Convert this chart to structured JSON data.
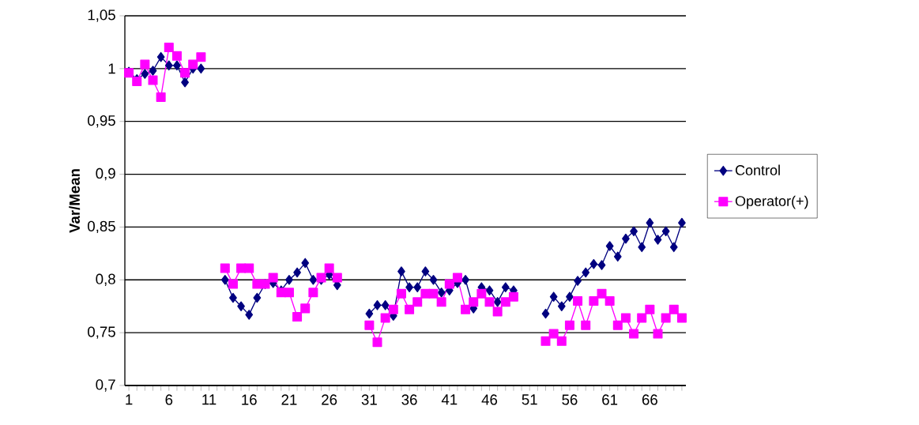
{
  "chart_data": {
    "type": "line",
    "ylabel": "Var/Mean",
    "categories": [
      "1",
      null,
      null,
      null,
      null,
      "6",
      null,
      null,
      null,
      null,
      "11",
      null,
      null,
      null,
      null,
      "16",
      null,
      null,
      null,
      null,
      "21",
      null,
      null,
      null,
      null,
      "26",
      null,
      null,
      null,
      null,
      "31",
      null,
      null,
      null,
      null,
      "36",
      null,
      null,
      null,
      null,
      "41",
      null,
      null,
      null,
      null,
      "46",
      null,
      null,
      null,
      null,
      "51",
      null,
      null,
      null,
      null,
      "56",
      null,
      null,
      null,
      null,
      "61",
      null,
      null,
      null,
      null,
      "66",
      null,
      null,
      null,
      null
    ],
    "series": [
      {
        "name": "Control",
        "color": "#000080",
        "marker": "diamond",
        "values": [
          0.997,
          0.99,
          0.995,
          0.998,
          1.011,
          1.003,
          1.003,
          0.987,
          1.0,
          1.0,
          null,
          null,
          0.8,
          0.783,
          0.775,
          0.767,
          0.783,
          0.796,
          0.797,
          0.79,
          0.8,
          0.807,
          0.816,
          0.8,
          0.8,
          0.805,
          0.795,
          null,
          null,
          null,
          0.768,
          0.776,
          0.776,
          0.766,
          0.808,
          0.793,
          0.793,
          0.808,
          0.8,
          0.788,
          0.79,
          0.797,
          0.8,
          0.773,
          0.793,
          0.79,
          0.779,
          0.793,
          0.79,
          null,
          null,
          null,
          0.768,
          0.784,
          0.775,
          0.784,
          0.799,
          0.807,
          0.815,
          0.814,
          0.832,
          0.822,
          0.839,
          0.846,
          0.831,
          0.854,
          0.838,
          0.846,
          0.831,
          0.854
        ]
      },
      {
        "name": "Operator(+)",
        "color": "#ff00ff",
        "marker": "square",
        "values": [
          0.996,
          0.988,
          1.004,
          0.989,
          0.973,
          1.02,
          1.012,
          0.996,
          1.004,
          1.011,
          null,
          null,
          0.811,
          0.796,
          0.811,
          0.811,
          0.796,
          0.796,
          0.802,
          0.788,
          0.788,
          0.765,
          0.773,
          0.788,
          0.802,
          0.811,
          0.802,
          null,
          null,
          null,
          0.757,
          0.741,
          0.764,
          0.772,
          0.787,
          0.772,
          0.779,
          0.787,
          0.787,
          0.779,
          0.796,
          0.802,
          0.772,
          0.779,
          0.787,
          0.779,
          0.77,
          0.779,
          0.784,
          null,
          null,
          null,
          0.742,
          0.749,
          0.742,
          0.757,
          0.78,
          0.757,
          0.78,
          0.787,
          0.78,
          0.757,
          0.764,
          0.749,
          0.764,
          0.772,
          0.749,
          0.764,
          0.772,
          0.764
        ]
      }
    ],
    "ylim": [
      0.7,
      1.05
    ],
    "yticks": [
      {
        "value": 0.7,
        "label": "0,7"
      },
      {
        "value": 0.75,
        "label": "0,75"
      },
      {
        "value": 0.8,
        "label": "0,8"
      },
      {
        "value": 0.85,
        "label": "0,85"
      },
      {
        "value": 0.9,
        "label": "0,9"
      },
      {
        "value": 0.95,
        "label": "0,95"
      },
      {
        "value": 1,
        "label": "1"
      },
      {
        "value": 1.05,
        "label": "1,05"
      }
    ],
    "grid": "y",
    "legend": "right",
    "line_style": "solid"
  }
}
